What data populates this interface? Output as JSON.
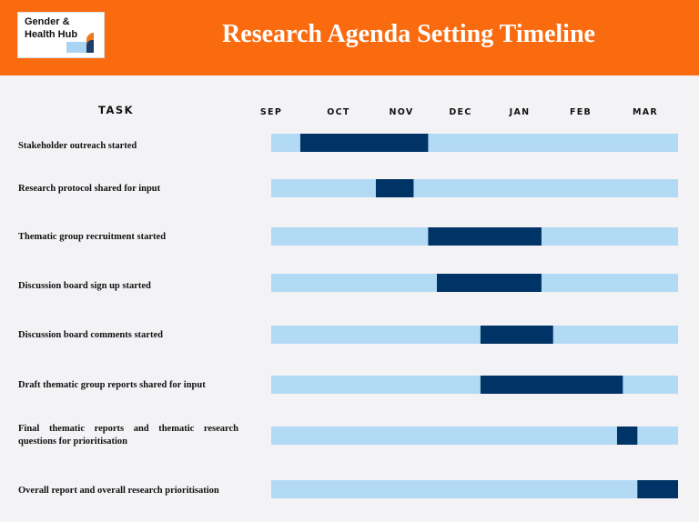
{
  "header": {
    "title": "Research Agenda Setting Timeline",
    "logo_line1": "Gender &",
    "logo_line2": "Health Hub"
  },
  "colors": {
    "header_bg": "#fa6b10",
    "track": "#b3daf5",
    "active": "#003366",
    "logo_blue": "#a9d3f2",
    "logo_orange": "#f07a1a",
    "logo_navy": "#1f3a6b"
  },
  "chart_data": {
    "type": "gantt",
    "task_header": "TASK",
    "x_unit": "month",
    "months": [
      "SEP",
      "OCT",
      "NOV",
      "DEC",
      "JAN",
      "FEB",
      "MAR"
    ],
    "timeline_range": [
      0,
      7
    ],
    "tasks": [
      {
        "label": "Stakeholder outreach started",
        "start": 0.5,
        "end": 2.7
      },
      {
        "label": "Research protocol shared for input",
        "start": 1.8,
        "end": 2.45
      },
      {
        "label": "Thematic group recruitment started",
        "start": 2.7,
        "end": 4.65
      },
      {
        "label": "Discussion board sign up started",
        "start": 2.85,
        "end": 4.65
      },
      {
        "label": "Discussion board comments started",
        "start": 3.6,
        "end": 4.85
      },
      {
        "label": "Draft thematic group reports shared for input",
        "start": 3.6,
        "end": 6.05
      },
      {
        "label": "Final thematic reports and thematic research questions for prioritisation",
        "start": 5.95,
        "end": 6.3
      },
      {
        "label": "Overall report and overall research prioritisation",
        "start": 6.3,
        "end": 7.0
      }
    ]
  }
}
